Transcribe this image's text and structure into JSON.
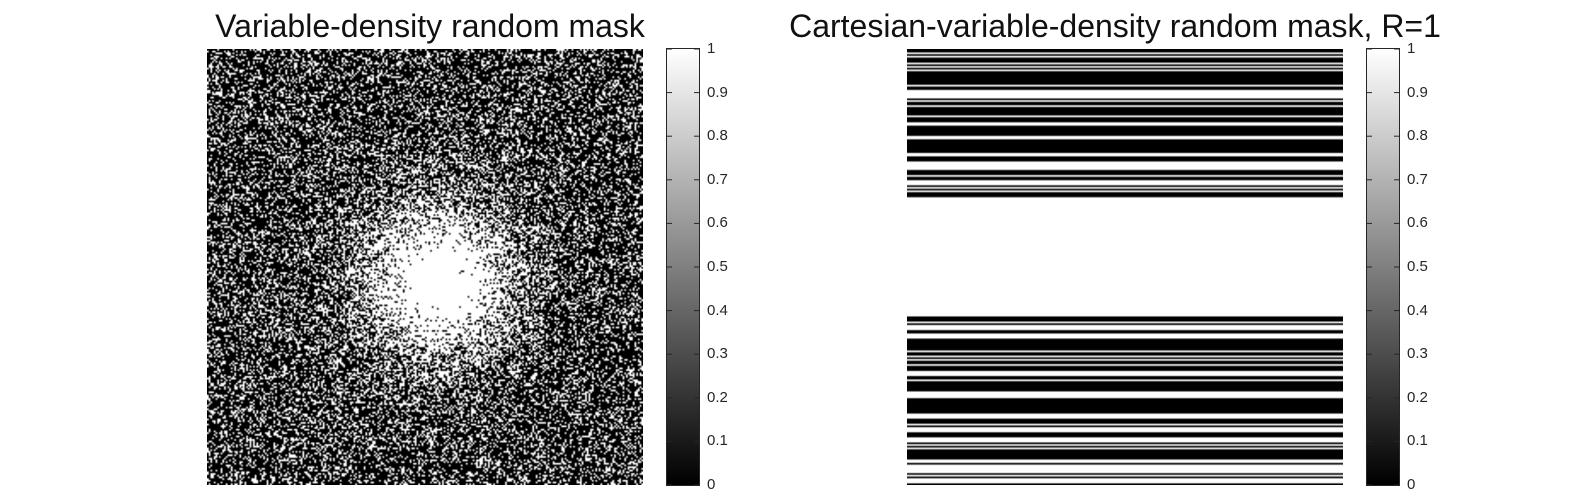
{
  "figure": {
    "background": "#ffffff"
  },
  "chart_data": [
    {
      "type": "heatmap",
      "title": "Variable-density random mask",
      "description_values": "binary mask (0 = black, 1 = white); sampling density high near center, decreasing radially",
      "matrix_size": [
        256,
        256
      ],
      "value_range": [
        0,
        1
      ],
      "colormap": "gray",
      "colorbar": {
        "ticks": [
          0,
          0.1,
          0.2,
          0.3,
          0.4,
          0.5,
          0.6,
          0.7,
          0.8,
          0.9,
          1
        ],
        "tick_labels": [
          "0",
          "0.1",
          "0.2",
          "0.3",
          "0.4",
          "0.5",
          "0.6",
          "0.7",
          "0.8",
          "0.9",
          "1"
        ],
        "placement": "right"
      },
      "axes_visible": false
    },
    {
      "type": "heatmap",
      "title": "Cartesian-variable-density random mask, R=1",
      "description_values": "binary mask of full horizontal lines; fully sampled central band, random lines toward edges",
      "matrix_size": [
        256,
        256
      ],
      "value_range": [
        0,
        1
      ],
      "colormap": "gray",
      "fully_sampled_rows": [
        87,
        155
      ],
      "colorbar": {
        "ticks": [
          0,
          0.1,
          0.2,
          0.3,
          0.4,
          0.5,
          0.6,
          0.7,
          0.8,
          0.9,
          1
        ],
        "tick_labels": [
          "0",
          "0.1",
          "0.2",
          "0.3",
          "0.4",
          "0.5",
          "0.6",
          "0.7",
          "0.8",
          "0.9",
          "1"
        ],
        "placement": "right"
      },
      "axes_visible": false
    }
  ]
}
